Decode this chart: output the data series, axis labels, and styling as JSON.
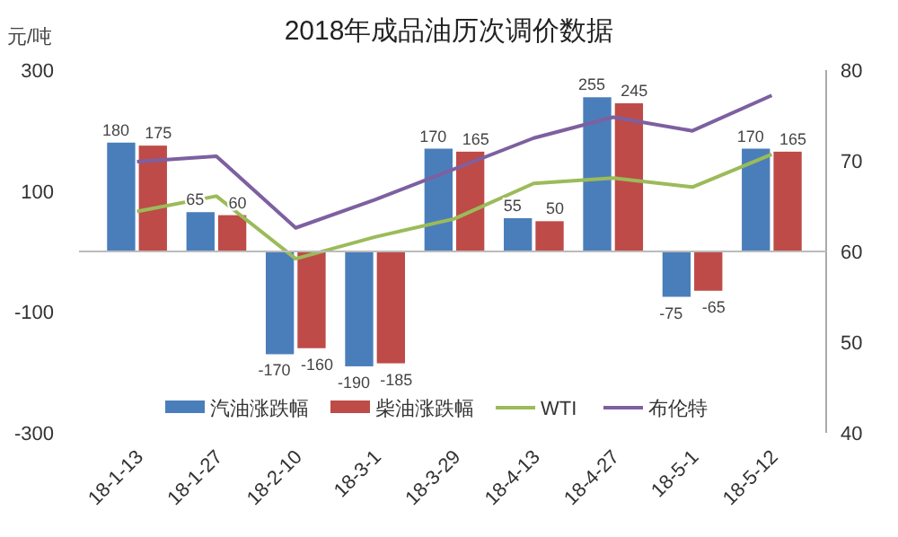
{
  "chart_data": {
    "type": "bar",
    "title": "2018年成品油历次调价数据",
    "ylabel": "元/吨",
    "categories": [
      "18-1-13",
      "18-1-27",
      "18-2-10",
      "18-3-1",
      "18-3-29",
      "18-4-13",
      "18-4-27",
      "18-5-1",
      "18-5-12"
    ],
    "series": [
      {
        "name": "汽油涨跌幅",
        "color": "#4a7ebb",
        "values": [
          180,
          65,
          -170,
          -190,
          170,
          55,
          255,
          -75,
          170
        ],
        "value_labels": [
          "180",
          "65",
          "-170",
          "-190",
          "170",
          "55",
          "255",
          "-75",
          "170"
        ]
      },
      {
        "name": "柴油涨跌幅",
        "color": "#be4b48",
        "values": [
          175,
          60,
          -160,
          -185,
          165,
          50,
          245,
          -65,
          165
        ],
        "value_labels": [
          "175",
          "60",
          "-160",
          "-185",
          "165",
          "50",
          "245",
          "-65",
          "165"
        ]
      },
      {
        "name": "WTI",
        "type": "line",
        "axis": "y2",
        "color": "#9bbb59",
        "values": [
          64.4,
          66.1,
          59.2,
          61.6,
          63.6,
          67.5,
          68.1,
          67.1,
          70.7
        ]
      },
      {
        "name": "布伦特",
        "type": "line",
        "axis": "y2",
        "color": "#7d60a0",
        "values": [
          69.9,
          70.5,
          62.6,
          65.7,
          69.1,
          72.5,
          74.8,
          73.3,
          77.2
        ]
      }
    ],
    "ylim": [
      -300,
      300
    ],
    "yticks": [
      -300,
      -100,
      100,
      300
    ],
    "y2lim": [
      40,
      80
    ],
    "y2ticks": [
      40,
      50,
      60,
      70,
      80
    ],
    "legend": "bottom"
  }
}
